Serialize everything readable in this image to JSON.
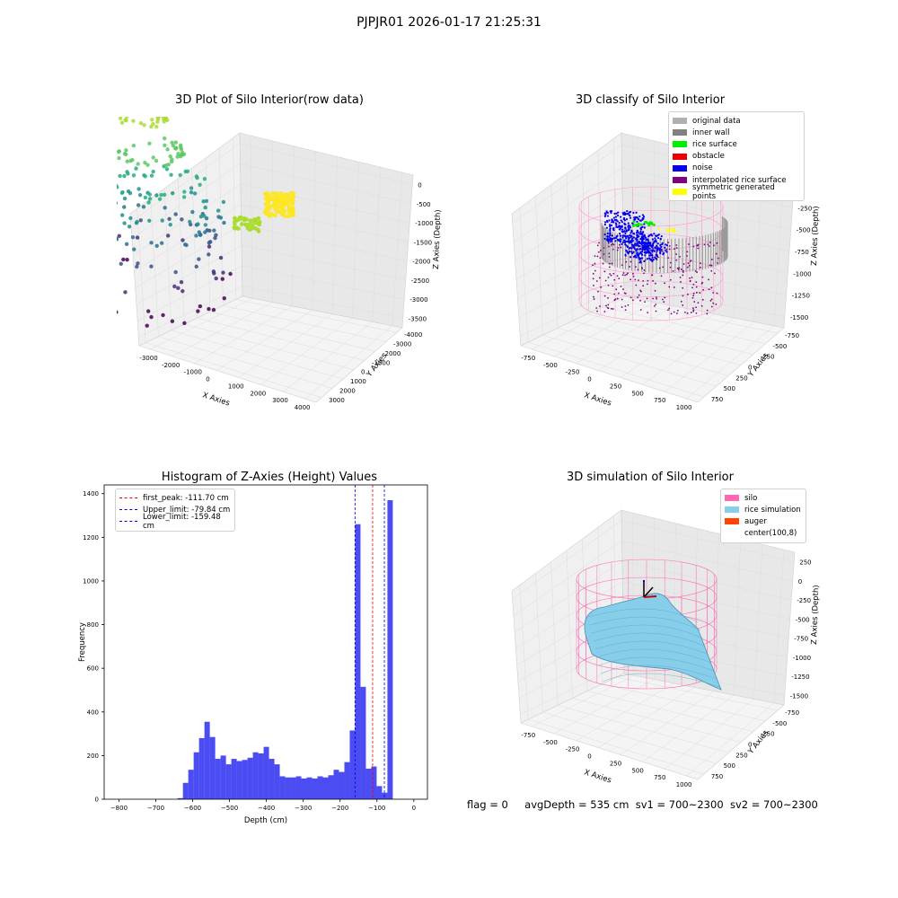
{
  "suptitle": "PJPJR01 2026-01-17 21:25:31",
  "footer": {
    "flag": "flag = 0",
    "avg_depth": "avgDepth = 535 cm",
    "sv1": "sv1 = 700~2300",
    "sv2": "sv2 = 700~2300"
  },
  "panels": {
    "raw": {
      "title": "3D Plot of Silo Interior(row data)",
      "xlabel": "X Axies",
      "ylabel": "Y Axies",
      "zlabel": "Z Axies (Depth)",
      "xticks": [
        "-3000",
        "-2000",
        "-1000",
        "0",
        "1000",
        "2000",
        "3000",
        "4000"
      ],
      "yticks": [
        "3000",
        "2000",
        "1000",
        "0",
        "-1000",
        "-2000",
        "-3000",
        "-4000"
      ],
      "zticks": [
        "0",
        "-500",
        "-1000",
        "-1500",
        "-2000",
        "-2500",
        "-3000",
        "-3500"
      ]
    },
    "classify": {
      "title": "3D classify of Silo Interior",
      "xlabel": "X Axies",
      "ylabel": "Y Axies",
      "zlabel": "Z Axies (Depth)",
      "xticks": [
        "-750",
        "-500",
        "-250",
        "0",
        "250",
        "500",
        "750",
        "1000"
      ],
      "yticks": [
        "750",
        "500",
        "250",
        "0",
        "-250",
        "-500",
        "-750"
      ],
      "zticks": [
        "0",
        "-250",
        "-500",
        "-750",
        "-1000",
        "-1250",
        "-1500"
      ],
      "legend": [
        {
          "label": "original data",
          "color": "#b0b0b0"
        },
        {
          "label": "inner wall",
          "color": "#808080"
        },
        {
          "label": "rice surface",
          "color": "#00ee00"
        },
        {
          "label": "obstacle",
          "color": "#ee0000"
        },
        {
          "label": "noise",
          "color": "#0000ee"
        },
        {
          "label": "interpolated rice surface",
          "color": "#800080"
        },
        {
          "label": "symmetric generated points",
          "color": "#ffff00"
        }
      ]
    },
    "simulation": {
      "title": "3D simulation of Silo Interior",
      "xlabel": "X Axies",
      "ylabel": "Y Axies",
      "zlabel": "Z Axies (Depth)",
      "xticks": [
        "-750",
        "-500",
        "-250",
        "0",
        "250",
        "500",
        "750",
        "1000"
      ],
      "yticks": [
        "750",
        "500",
        "250",
        "0",
        "-250",
        "-500",
        "-750"
      ],
      "zticks": [
        "250",
        "0",
        "-250",
        "-500",
        "-750",
        "-1000",
        "-1250",
        "-1500"
      ],
      "legend": [
        {
          "label": "silo",
          "color": "#ff69b4"
        },
        {
          "label": "rice simulation",
          "color": "#87ceeb"
        },
        {
          "label": "auger",
          "color": "#ff4500"
        },
        {
          "label": "center(100,8)",
          "color": "#ffffff"
        }
      ]
    }
  },
  "chart_data": {
    "type": "bar",
    "title": "Histogram of Z-Axies (Height) Values",
    "xlabel": "Depth (cm)",
    "ylabel": "Frequency",
    "xlim": [
      -840,
      37
    ],
    "ylim": [
      0,
      1440
    ],
    "xticks": [
      -800,
      -700,
      -600,
      -500,
      -400,
      -300,
      -200,
      -100,
      0
    ],
    "yticks": [
      0,
      200,
      400,
      600,
      800,
      1000,
      1200,
      1400
    ],
    "bar_color": "#0000ee",
    "bin_width": 14.6,
    "bins_start": -641,
    "values": [
      5,
      75,
      135,
      215,
      280,
      355,
      285,
      185,
      200,
      160,
      185,
      175,
      180,
      190,
      215,
      210,
      240,
      185,
      160,
      105,
      100,
      100,
      105,
      95,
      100,
      95,
      105,
      100,
      110,
      135,
      125,
      170,
      315,
      1260,
      515,
      140,
      150,
      60,
      30,
      1370
    ],
    "lines": [
      {
        "name": "first_peak: -111.70 cm",
        "x": -111.7,
        "color": "#ee0000"
      },
      {
        "name": "Upper_limit: -79.84 cm",
        "x": -79.84,
        "color": "#0000ee"
      },
      {
        "name": "Lower_limit: -159.48 cm",
        "x": -159.48,
        "color": "#0000ee"
      }
    ]
  }
}
